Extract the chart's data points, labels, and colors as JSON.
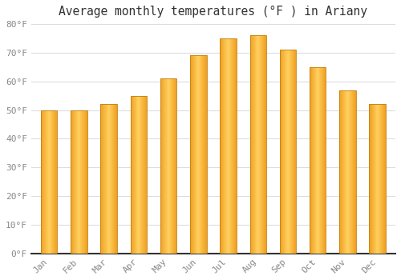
{
  "title": "Average monthly temperatures (°F ) in Ariany",
  "months": [
    "Jan",
    "Feb",
    "Mar",
    "Apr",
    "May",
    "Jun",
    "Jul",
    "Aug",
    "Sep",
    "Oct",
    "Nov",
    "Dec"
  ],
  "values": [
    50,
    50,
    52,
    55,
    61,
    69,
    75,
    76,
    71,
    65,
    57,
    52
  ],
  "bar_color_center": "#FFD060",
  "bar_color_edge": "#F0A020",
  "ylim": [
    0,
    80
  ],
  "yticks": [
    0,
    10,
    20,
    30,
    40,
    50,
    60,
    70,
    80
  ],
  "ytick_labels": [
    "0°F",
    "10°F",
    "20°F",
    "30°F",
    "40°F",
    "50°F",
    "60°F",
    "70°F",
    "80°F"
  ],
  "background_color": "#ffffff",
  "grid_color": "#dddddd",
  "title_fontsize": 10.5,
  "tick_fontsize": 8,
  "font_family": "monospace",
  "bar_width": 0.55
}
